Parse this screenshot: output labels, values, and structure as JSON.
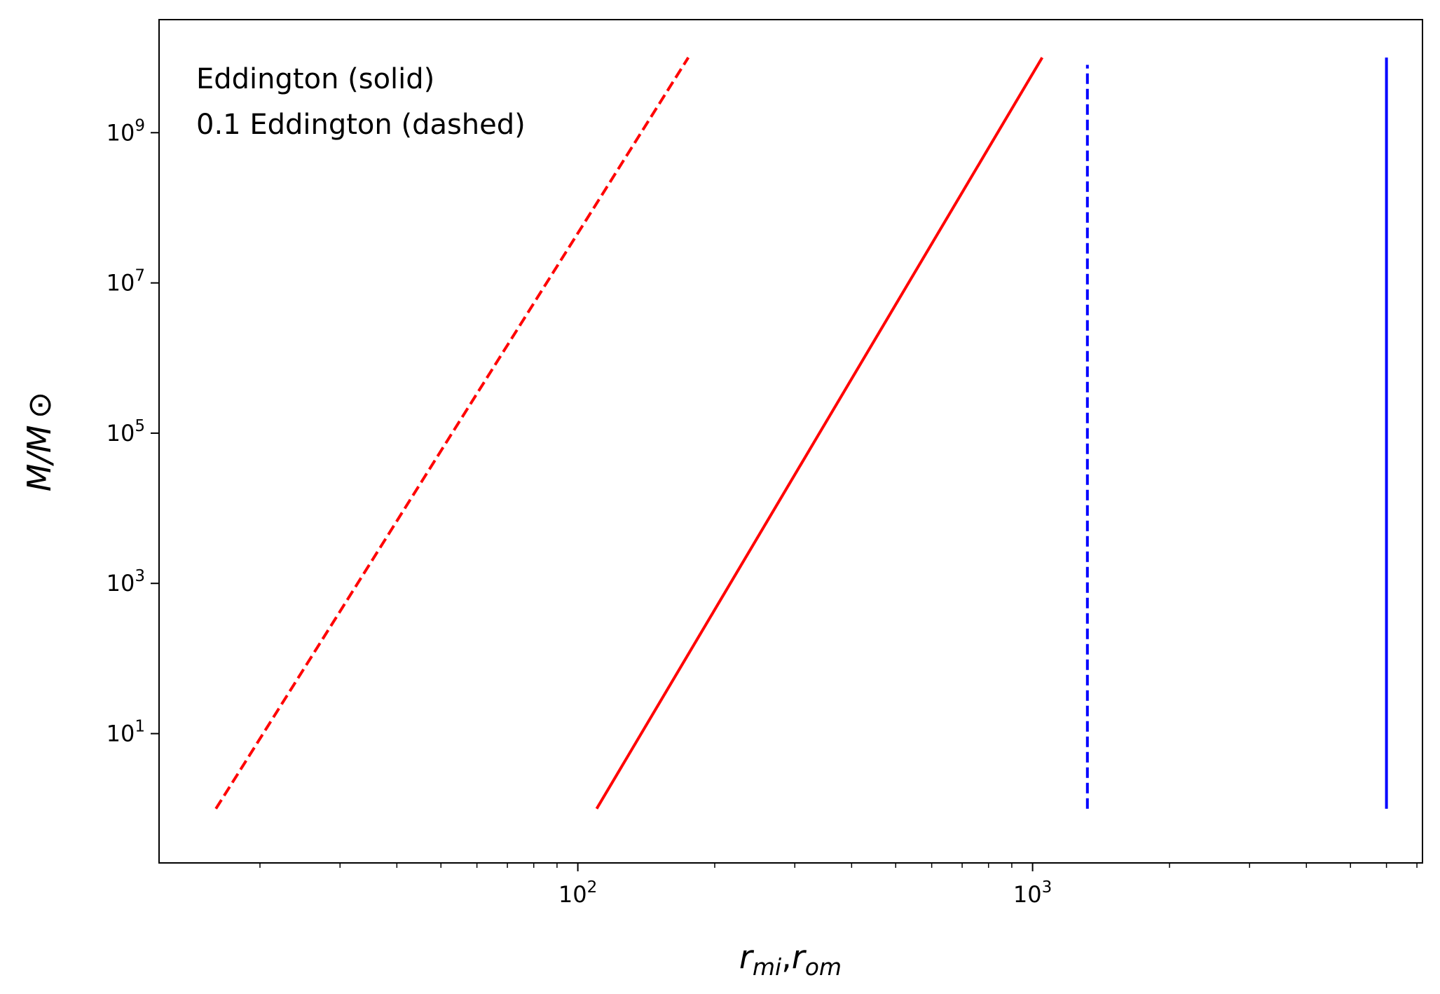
{
  "chart_data": {
    "type": "line",
    "x_scale": "log",
    "y_scale": "log",
    "xlim": [
      12,
      7200
    ],
    "ylim": [
      0.19,
      32000000000.0
    ],
    "x_major_ticks": [
      {
        "value": 100,
        "base": "10",
        "exp": "2"
      },
      {
        "value": 1000,
        "base": "10",
        "exp": "3"
      }
    ],
    "y_major_ticks": [
      {
        "value": 10,
        "base": "10",
        "exp": "1"
      },
      {
        "value": 1000,
        "base": "10",
        "exp": "3"
      },
      {
        "value": 100000,
        "base": "10",
        "exp": "5"
      },
      {
        "value": 10000000,
        "base": "10",
        "exp": "7"
      },
      {
        "value": 1000000000,
        "base": "10",
        "exp": "9"
      }
    ],
    "x_minor_ticks": [
      20,
      30,
      40,
      50,
      60,
      70,
      80,
      90,
      200,
      300,
      400,
      500,
      600,
      700,
      800,
      900,
      2000,
      3000,
      4000,
      5000,
      6000,
      7000
    ],
    "xlabel": {
      "main": "r",
      "sub1": "mi",
      "sep": ",",
      "main2": "r",
      "sub2": "om"
    },
    "ylabel": "M/M ⊙",
    "annotations": [
      "Eddington (solid)",
      "0.1 Eddington (dashed)"
    ],
    "grid": false,
    "series": [
      {
        "color": "#ff0000",
        "style": "dashed",
        "x": [
          16,
          175
        ],
        "y": [
          1,
          10000000000.0
        ]
      },
      {
        "color": "#ff0000",
        "style": "solid",
        "x": [
          110,
          1050
        ],
        "y": [
          1,
          10000000000.0
        ]
      },
      {
        "color": "#0000ff",
        "style": "dashed",
        "x": [
          1320,
          1320
        ],
        "y": [
          1,
          8000000000.0
        ]
      },
      {
        "color": "#0000ff",
        "style": "solid",
        "x": [
          6000,
          6000
        ],
        "y": [
          1,
          10000000000.0
        ]
      }
    ]
  }
}
